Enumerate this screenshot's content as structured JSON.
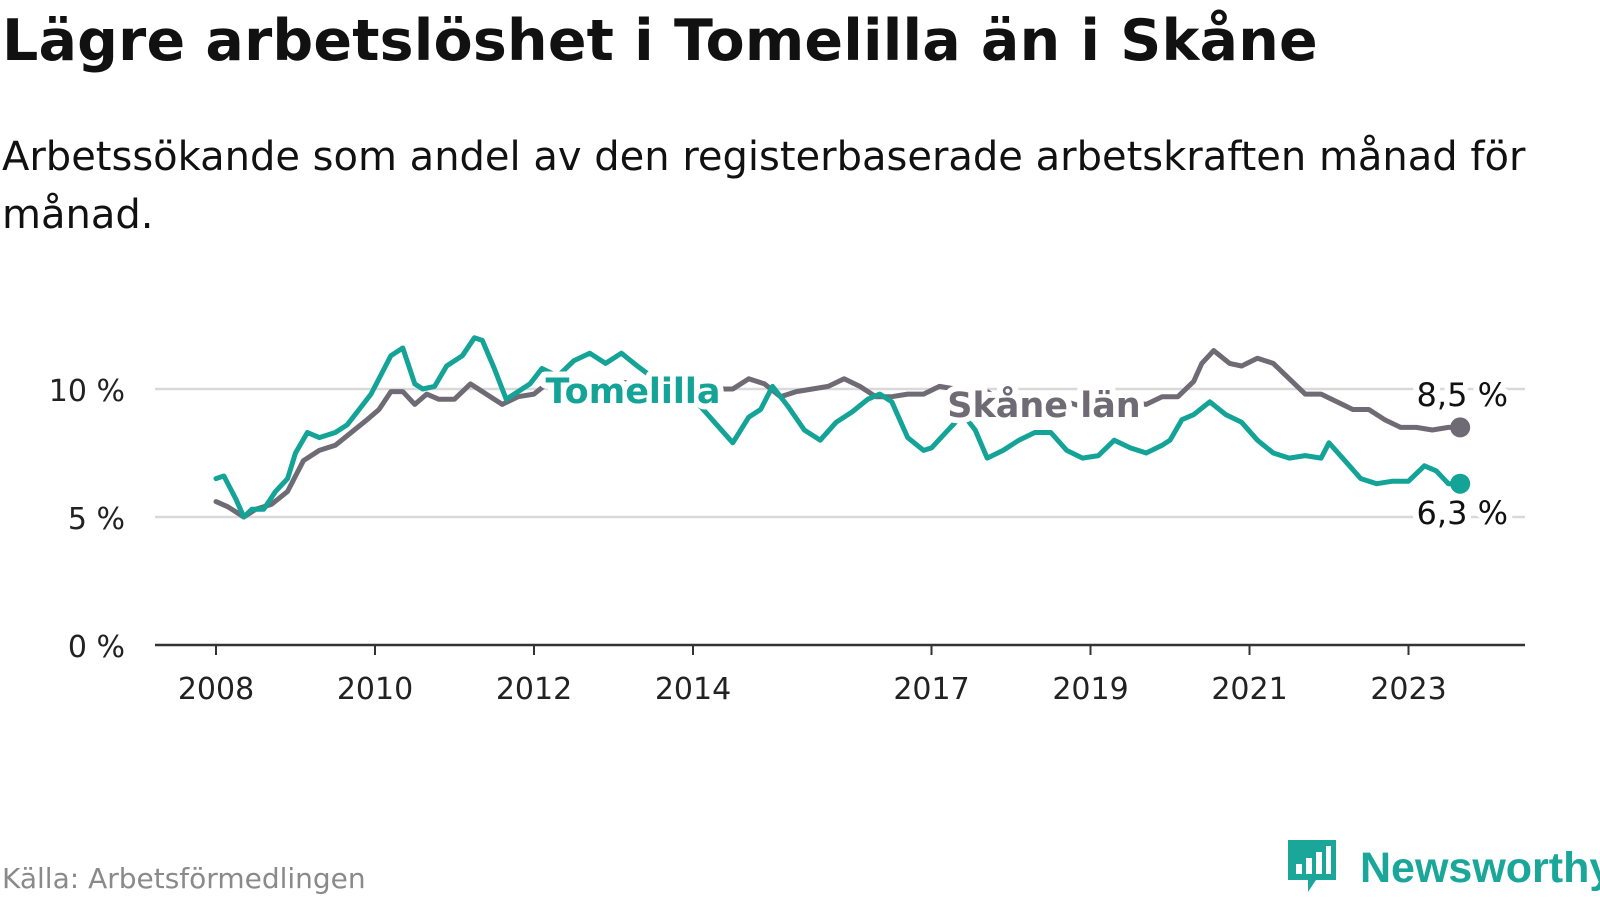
{
  "title": "Lägre arbetslöshet i Tomelilla än i Skåne",
  "subtitle": "Arbetssökande som andel av den registerbaserade arbetskraften månad för månad.",
  "source": "Källa: Arbetsförmedlingen",
  "brand": "Newsworthy",
  "colors": {
    "tomelilla": "#14a397",
    "skane": "#6e6b74",
    "grid": "#d9d9d9",
    "axis": "#333333",
    "brand": "#1aa79a"
  },
  "chart_data": {
    "type": "line",
    "title": "Lägre arbetslöshet i Tomelilla än i Skåne",
    "xlabel": "",
    "ylabel": "",
    "ylim": [
      0,
      12
    ],
    "xlim": [
      2007.5,
      2024.7
    ],
    "grid": true,
    "y_ticks": [
      {
        "value": 0,
        "label": "0 %"
      },
      {
        "value": 5,
        "label": "5 %"
      },
      {
        "value": 10,
        "label": "10 %"
      }
    ],
    "x_ticks": [
      {
        "value": 2008,
        "label": "2008"
      },
      {
        "value": 2010,
        "label": "2010"
      },
      {
        "value": 2012,
        "label": "2012"
      },
      {
        "value": 2014,
        "label": "2014"
      },
      {
        "value": 2017,
        "label": "2017"
      },
      {
        "value": 2019,
        "label": "2019"
      },
      {
        "value": 2021,
        "label": "2021"
      },
      {
        "value": 2023,
        "label": "2023"
      }
    ],
    "series": [
      {
        "name": "Skåne län",
        "label": "Skåne län",
        "end_label": "8,5 %",
        "color": "#6e6b74",
        "x": [
          2008.0,
          2008.15,
          2008.35,
          2008.5,
          2008.7,
          2008.9,
          2009.1,
          2009.3,
          2009.5,
          2009.7,
          2009.9,
          2010.05,
          2010.2,
          2010.35,
          2010.5,
          2010.65,
          2010.8,
          2011.0,
          2011.2,
          2011.4,
          2011.6,
          2011.8,
          2012.0,
          2012.2,
          2012.4,
          2012.6,
          2012.8,
          2013.0,
          2013.3,
          2013.6,
          2013.9,
          2014.1,
          2014.3,
          2014.5,
          2014.7,
          2014.9,
          2015.1,
          2015.3,
          2015.5,
          2015.7,
          2015.9,
          2016.1,
          2016.3,
          2016.5,
          2016.7,
          2016.9,
          2017.1,
          2017.3,
          2017.5,
          2017.7,
          2017.9,
          2018.1,
          2018.3,
          2018.5,
          2018.7,
          2018.9,
          2019.1,
          2019.3,
          2019.5,
          2019.7,
          2019.9,
          2020.1,
          2020.3,
          2020.4,
          2020.55,
          2020.75,
          2020.9,
          2021.1,
          2021.3,
          2021.5,
          2021.7,
          2021.9,
          2022.1,
          2022.3,
          2022.5,
          2022.7,
          2022.9,
          2023.1,
          2023.3,
          2023.5,
          2023.65
        ],
        "values": [
          5.6,
          5.4,
          5.0,
          5.3,
          5.5,
          6.0,
          7.2,
          7.6,
          7.8,
          8.3,
          8.8,
          9.2,
          9.9,
          9.9,
          9.4,
          9.8,
          9.6,
          9.6,
          10.2,
          9.8,
          9.4,
          9.7,
          9.8,
          10.3,
          10.2,
          10.0,
          10.2,
          10.3,
          10.2,
          10.2,
          10.0,
          10.0,
          10.0,
          10.0,
          10.4,
          10.2,
          9.7,
          9.9,
          10.0,
          10.1,
          10.4,
          10.1,
          9.7,
          9.7,
          9.8,
          9.8,
          10.1,
          10.0,
          9.8,
          9.9,
          9.5,
          9.5,
          9.5,
          9.4,
          9.5,
          9.3,
          9.3,
          9.4,
          9.5,
          9.4,
          9.7,
          9.7,
          10.3,
          11.0,
          11.5,
          11.0,
          10.9,
          11.2,
          11.0,
          10.4,
          9.8,
          9.8,
          9.5,
          9.2,
          9.2,
          8.8,
          8.5,
          8.5,
          8.4,
          8.5,
          8.5
        ]
      },
      {
        "name": "Tomelilla",
        "label": "Tomelilla",
        "end_label": "6,3 %",
        "color": "#14a397",
        "x": [
          2008.0,
          2008.1,
          2008.25,
          2008.35,
          2008.45,
          2008.6,
          2008.75,
          2008.9,
          2009.0,
          2009.15,
          2009.3,
          2009.5,
          2009.65,
          2009.8,
          2009.95,
          2010.0,
          2010.2,
          2010.35,
          2010.5,
          2010.6,
          2010.75,
          2010.9,
          2011.1,
          2011.25,
          2011.35,
          2011.5,
          2011.65,
          2011.8,
          2011.95,
          2012.1,
          2012.3,
          2012.5,
          2012.7,
          2012.9,
          2013.1,
          2013.3,
          2013.6,
          2013.9,
          2014.1,
          2014.3,
          2014.5,
          2014.7,
          2014.85,
          2015.0,
          2015.2,
          2015.4,
          2015.6,
          2015.8,
          2016.0,
          2016.2,
          2016.35,
          2016.5,
          2016.7,
          2016.9,
          2017.0,
          2017.15,
          2017.3,
          2017.4,
          2017.55,
          2017.7,
          2017.9,
          2018.1,
          2018.3,
          2018.5,
          2018.7,
          2018.9,
          2019.1,
          2019.3,
          2019.5,
          2019.7,
          2019.9,
          2020.0,
          2020.15,
          2020.3,
          2020.5,
          2020.7,
          2020.9,
          2021.1,
          2021.3,
          2021.5,
          2021.7,
          2021.9,
          2022.0,
          2022.2,
          2022.4,
          2022.6,
          2022.8,
          2023.0,
          2023.2,
          2023.35,
          2023.5,
          2023.65
        ],
        "values": [
          6.5,
          6.6,
          5.7,
          5.0,
          5.3,
          5.3,
          6.0,
          6.5,
          7.5,
          8.3,
          8.1,
          8.3,
          8.6,
          9.2,
          9.8,
          10.1,
          11.3,
          11.6,
          10.2,
          10.0,
          10.1,
          10.9,
          11.3,
          12.0,
          11.9,
          10.8,
          9.6,
          9.9,
          10.2,
          10.8,
          10.5,
          11.1,
          11.4,
          11.0,
          11.4,
          10.9,
          10.2,
          9.7,
          9.3,
          8.6,
          7.9,
          8.9,
          9.2,
          10.1,
          9.3,
          8.4,
          8.0,
          8.7,
          9.1,
          9.6,
          9.8,
          9.5,
          8.1,
          7.6,
          7.7,
          8.2,
          8.7,
          9.0,
          8.4,
          7.3,
          7.6,
          8.0,
          8.3,
          8.3,
          7.6,
          7.3,
          7.4,
          8.0,
          7.7,
          7.5,
          7.8,
          8.0,
          8.8,
          9.0,
          9.5,
          9.0,
          8.7,
          8.0,
          7.5,
          7.3,
          7.4,
          7.3,
          7.9,
          7.2,
          6.5,
          6.3,
          6.4,
          6.4,
          7.0,
          6.8,
          6.3,
          6.3
        ]
      }
    ]
  }
}
